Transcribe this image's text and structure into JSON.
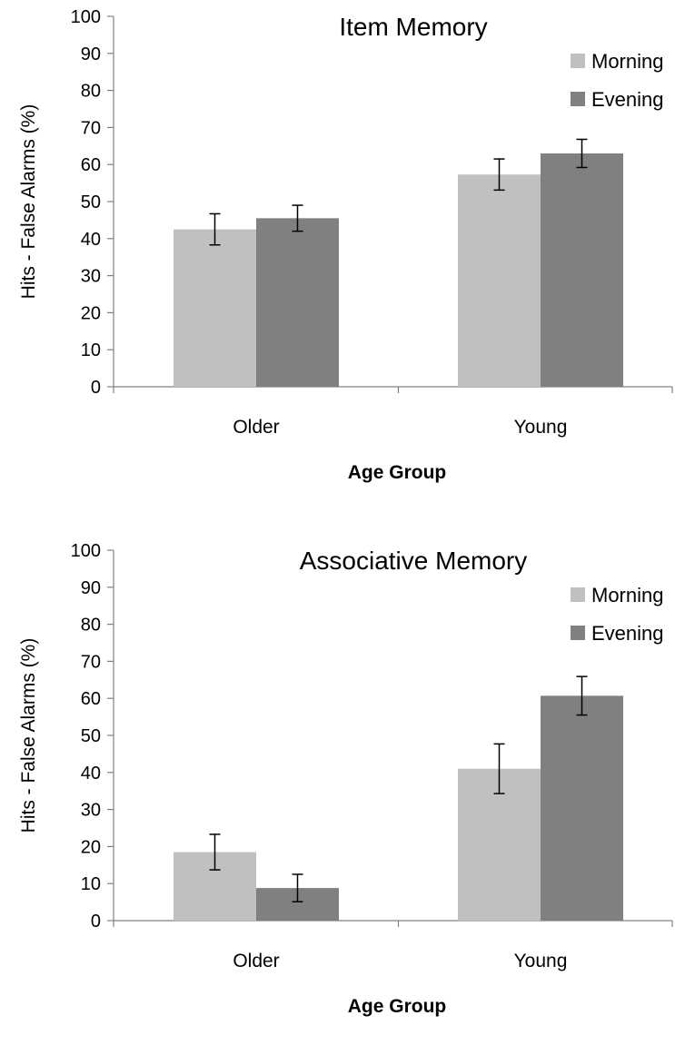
{
  "chart_data": [
    {
      "type": "bar",
      "title": "Item Memory",
      "xlabel": "Age Group",
      "ylabel": "Hits - False Alarms (%)",
      "ylim": [
        0,
        100
      ],
      "yticks": [
        "0",
        "10",
        "20",
        "30",
        "40",
        "50",
        "60",
        "70",
        "80",
        "90",
        "100"
      ],
      "categories": [
        "Older",
        "Young"
      ],
      "series": [
        {
          "name": "Morning",
          "color": "#c0c0c0",
          "values": [
            42.5,
            57.3
          ],
          "errors": [
            4.2,
            4.2
          ]
        },
        {
          "name": "Evening",
          "color": "#808080",
          "values": [
            45.5,
            63.0
          ],
          "errors": [
            3.5,
            3.8
          ]
        }
      ],
      "legend": "top-right",
      "grid": false
    },
    {
      "type": "bar",
      "title": "Associative Memory",
      "xlabel": "Age Group",
      "ylabel": "Hits - False Alarms (%)",
      "ylim": [
        0,
        100
      ],
      "yticks": [
        "0",
        "10",
        "20",
        "30",
        "40",
        "50",
        "60",
        "70",
        "80",
        "90",
        "100"
      ],
      "categories": [
        "Older",
        "Young"
      ],
      "series": [
        {
          "name": "Morning",
          "color": "#c0c0c0",
          "values": [
            18.5,
            41.0
          ],
          "errors": [
            4.8,
            6.7
          ]
        },
        {
          "name": "Evening",
          "color": "#808080",
          "values": [
            8.8,
            60.7
          ],
          "errors": [
            3.7,
            5.2
          ]
        }
      ],
      "legend": "top-right",
      "grid": false
    }
  ]
}
